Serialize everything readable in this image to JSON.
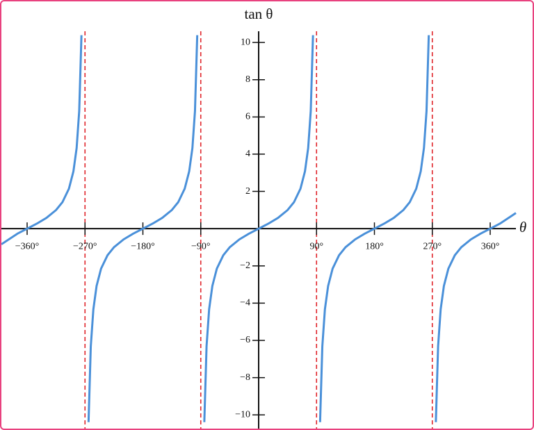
{
  "chart_data": {
    "type": "line",
    "y_axis_label": "tan θ",
    "x_axis_label": "θ",
    "xlim": [
      -400,
      400
    ],
    "ylim": [
      -10.7,
      10.6
    ],
    "xticks": [
      {
        "value": -360,
        "label": "−360°"
      },
      {
        "value": -270,
        "label": "−270°"
      },
      {
        "value": -180,
        "label": "−180°"
      },
      {
        "value": -90,
        "label": "−90°"
      },
      {
        "value": 90,
        "label": "90°"
      },
      {
        "value": 180,
        "label": "180°"
      },
      {
        "value": 270,
        "label": "270°"
      },
      {
        "value": 360,
        "label": "360°"
      }
    ],
    "yticks": [
      {
        "value": -10,
        "label": "−10"
      },
      {
        "value": -8,
        "label": "−8"
      },
      {
        "value": -6,
        "label": "−6"
      },
      {
        "value": -4,
        "label": "−4"
      },
      {
        "value": -2,
        "label": "−2"
      },
      2,
      4,
      6,
      8,
      10
    ],
    "asymptotes": [
      -270,
      -90,
      90,
      270
    ],
    "asymptote_color": "#e0242a",
    "series": [
      {
        "color": "#4a90d9",
        "x": [
          -400,
          -375,
          -360,
          -345,
          -330,
          -315,
          -305,
          -295,
          -288,
          -283,
          -279,
          -275.5,
          -270,
          -264.5,
          -261,
          -257,
          -252,
          -245,
          -235,
          -225,
          -210,
          -195,
          -180,
          -165,
          -150,
          -135,
          -125,
          -115,
          -108,
          -103,
          -99,
          -95.5,
          -90,
          -84.5,
          -81,
          -77,
          -72,
          -65,
          -55,
          -45,
          -30,
          -15,
          0,
          15,
          30,
          45,
          55,
          65,
          72,
          77,
          81,
          84.5,
          90,
          95.5,
          99,
          103,
          108,
          115,
          125,
          135,
          150,
          165,
          180,
          195,
          210,
          225,
          235,
          245,
          252,
          257,
          261,
          264.5,
          270,
          275.5,
          279,
          283,
          288,
          295,
          305,
          315,
          330,
          345,
          360,
          375,
          400
        ],
        "values": [
          -0.839,
          -0.268,
          0,
          0.268,
          0.577,
          1,
          1.428,
          2.145,
          3.078,
          4.331,
          6.314,
          10.39,
          null,
          -10.39,
          -6.314,
          -4.331,
          -3.078,
          -2.145,
          -1.428,
          -1,
          -0.577,
          -0.268,
          0,
          0.268,
          0.577,
          1,
          1.428,
          2.145,
          3.078,
          4.331,
          6.314,
          10.39,
          null,
          -10.39,
          -6.314,
          -4.331,
          -3.078,
          -2.145,
          -1.428,
          -1,
          -0.577,
          -0.268,
          0,
          0.268,
          0.577,
          1,
          1.428,
          2.145,
          3.078,
          4.331,
          6.314,
          10.39,
          null,
          -10.39,
          -6.314,
          -4.331,
          -3.078,
          -2.145,
          -1.428,
          -1,
          -0.577,
          -0.268,
          0,
          0.268,
          0.577,
          1,
          1.428,
          2.145,
          3.078,
          4.331,
          6.314,
          10.39,
          null,
          -10.39,
          -6.314,
          -4.331,
          -3.078,
          -2.145,
          -1.428,
          -1,
          -0.577,
          -0.268,
          0,
          0.268,
          0.839
        ]
      }
    ]
  }
}
